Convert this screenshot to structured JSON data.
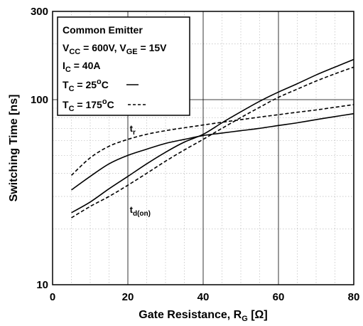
{
  "chart_data": {
    "type": "line",
    "xlabel": "Gate Resistance, R",
    "xlabel_sub": "G",
    "xlabel_unit": " [Ω]",
    "ylabel": "Switching Time [ns]",
    "xlim": [
      0,
      80
    ],
    "ylim": [
      10,
      300
    ],
    "y_scale": "log",
    "x_ticks": [
      "0",
      "20",
      "40",
      "60",
      "80"
    ],
    "y_ticks": [
      {
        "value": 10,
        "label": "10"
      },
      {
        "value": 100,
        "label": "100"
      },
      {
        "value": 300,
        "label": "300"
      }
    ],
    "grid": true,
    "legend": {
      "placement": "top-left",
      "lines": [
        {
          "parts": [
            {
              "t": "Common Emitter"
            }
          ]
        },
        {
          "parts": [
            {
              "t": "V"
            },
            {
              "t": "CC",
              "sub": true
            },
            {
              "t": " = 600V, V"
            },
            {
              "t": "GE",
              "sub": true
            },
            {
              "t": " = 15V"
            }
          ]
        },
        {
          "parts": [
            {
              "t": "I"
            },
            {
              "t": "C",
              "sub": true
            },
            {
              "t": " = 40A"
            }
          ]
        },
        {
          "parts": [
            {
              "t": "T"
            },
            {
              "t": "C",
              "sub": true
            },
            {
              "t": " = 25"
            },
            {
              "t": "o",
              "sup": true
            },
            {
              "t": "C"
            }
          ],
          "sample": "solid"
        },
        {
          "parts": [
            {
              "t": "T"
            },
            {
              "t": "C",
              "sub": true
            },
            {
              "t": " = 175"
            },
            {
              "t": "o",
              "sup": true
            },
            {
              "t": "C"
            }
          ],
          "sample": "dashed"
        }
      ]
    },
    "annotations": [
      {
        "text": "t",
        "sub": "r",
        "x": 20.5,
        "y": 67
      },
      {
        "text": "t",
        "sub": "d(on)",
        "x": 20.5,
        "y": 24.5
      }
    ],
    "series": [
      {
        "curve": "t_r",
        "style": "solid",
        "points": [
          [
            5,
            32.5
          ],
          [
            10,
            38.5
          ],
          [
            15,
            45
          ],
          [
            20,
            50
          ],
          [
            25,
            54
          ],
          [
            30,
            58
          ],
          [
            35,
            61
          ],
          [
            40,
            64
          ],
          [
            45,
            66
          ],
          [
            50,
            68
          ],
          [
            55,
            70
          ],
          [
            60,
            72.5
          ],
          [
            65,
            75
          ],
          [
            70,
            78
          ],
          [
            75,
            81
          ],
          [
            80,
            84
          ]
        ]
      },
      {
        "curve": "t_r",
        "style": "dashed",
        "points": [
          [
            5,
            39
          ],
          [
            10,
            48.5
          ],
          [
            15,
            56
          ],
          [
            20,
            61
          ],
          [
            25,
            65
          ],
          [
            30,
            68
          ],
          [
            35,
            70.5
          ],
          [
            40,
            73
          ],
          [
            45,
            75.5
          ],
          [
            50,
            78
          ],
          [
            55,
            80.5
          ],
          [
            60,
            83
          ],
          [
            65,
            85.5
          ],
          [
            70,
            88
          ],
          [
            75,
            91
          ],
          [
            80,
            94
          ]
        ]
      },
      {
        "curve": "t_d(on)",
        "style": "solid",
        "points": [
          [
            5,
            24.5
          ],
          [
            10,
            28
          ],
          [
            15,
            33
          ],
          [
            20,
            38.5
          ],
          [
            25,
            45
          ],
          [
            30,
            52
          ],
          [
            35,
            59
          ],
          [
            40,
            65
          ],
          [
            45,
            75
          ],
          [
            50,
            86
          ],
          [
            55,
            98
          ],
          [
            60,
            110
          ],
          [
            65,
            122
          ],
          [
            70,
            136
          ],
          [
            75,
            150
          ],
          [
            80,
            165
          ]
        ]
      },
      {
        "curve": "t_d(on)",
        "style": "dashed",
        "points": [
          [
            5,
            23
          ],
          [
            10,
            26.5
          ],
          [
            15,
            30
          ],
          [
            20,
            34.5
          ],
          [
            25,
            40
          ],
          [
            30,
            46.5
          ],
          [
            35,
            53.5
          ],
          [
            40,
            61
          ],
          [
            45,
            70
          ],
          [
            50,
            80
          ],
          [
            55,
            91
          ],
          [
            60,
            103
          ],
          [
            65,
            114
          ],
          [
            70,
            126
          ],
          [
            75,
            138
          ],
          [
            80,
            150
          ]
        ]
      }
    ]
  }
}
